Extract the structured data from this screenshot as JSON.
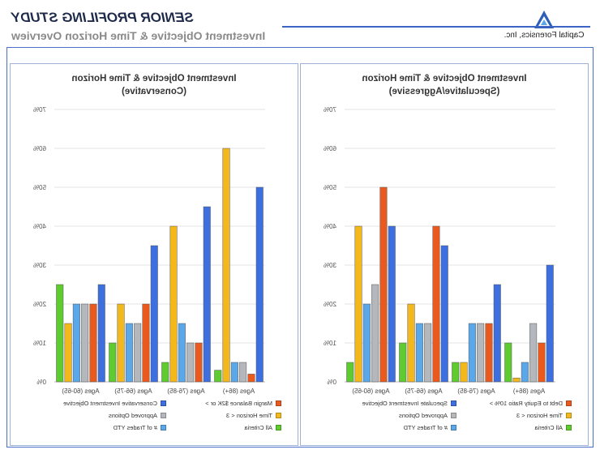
{
  "header": {
    "study_title": "SENIOR PROFILING STUDY",
    "study_subtitle": "Investment Objective & Time Horizon Overview",
    "logo_text": "Capital Forensics, Inc.",
    "logo_icon": "triangle-logo-icon",
    "accent_color": "#3d63c4"
  },
  "chart_data": [
    {
      "type": "bar",
      "title": "Investment Objective & Time Horizon",
      "subtitle": "(Speculative/Aggressive)",
      "categories": [
        "Ages (60-65)",
        "Ages (66-75)",
        "Ages (76-85)",
        "Ages (86+)"
      ],
      "ylim": [
        0,
        70
      ],
      "yticks": [
        "0%",
        "10%",
        "20%",
        "30%",
        "40%",
        "50%",
        "60%",
        "70%"
      ],
      "series": [
        {
          "name": "All Criteria",
          "color": "#5ecb2e",
          "values": [
            5,
            10,
            5,
            10
          ]
        },
        {
          "name": "Time Horizon < 3",
          "color": "#f2b81c",
          "values": [
            40,
            20,
            5,
            1
          ]
        },
        {
          "name": "# of Trades YTD",
          "color": "#5aa7ea",
          "values": [
            20,
            15,
            15,
            5
          ]
        },
        {
          "name": "Approved Options",
          "color": "#b4b8bd",
          "values": [
            25,
            15,
            15,
            15
          ]
        },
        {
          "name": "Debt to Equity Ratio 10% >",
          "color": "#ea5a1e",
          "values": [
            50,
            40,
            15,
            10
          ]
        },
        {
          "name": "Speculate Investment Objective",
          "color": "#3d6fe0",
          "values": [
            40,
            35,
            25,
            30
          ]
        }
      ],
      "grid": true,
      "legend_position": "bottom"
    },
    {
      "type": "bar",
      "title": "Investment Objective & Time Horizon",
      "subtitle": "(Conservative)",
      "categories": [
        "Ages (60-65)",
        "Ages (66-75)",
        "Ages (76-85)",
        "Ages (86+)"
      ],
      "ylim": [
        0,
        70
      ],
      "yticks": [
        "0%",
        "10%",
        "20%",
        "30%",
        "40%",
        "50%",
        "60%",
        "70%"
      ],
      "series": [
        {
          "name": "All Criteria",
          "color": "#5ecb2e",
          "values": [
            25,
            10,
            5,
            3
          ]
        },
        {
          "name": "Time Horizon < 3",
          "color": "#f2b81c",
          "values": [
            15,
            20,
            40,
            60
          ]
        },
        {
          "name": "# of Trades YTD",
          "color": "#5aa7ea",
          "values": [
            20,
            15,
            15,
            5
          ]
        },
        {
          "name": "Approved Options",
          "color": "#b4b8bd",
          "values": [
            20,
            15,
            10,
            5
          ]
        },
        {
          "name": "Margin Balance $2K or >",
          "color": "#ea5a1e",
          "values": [
            20,
            20,
            10,
            2
          ]
        },
        {
          "name": "Conservative Investment Objective",
          "color": "#3d6fe0",
          "values": [
            25,
            35,
            45,
            50
          ]
        }
      ],
      "grid": true,
      "legend_position": "bottom"
    }
  ]
}
